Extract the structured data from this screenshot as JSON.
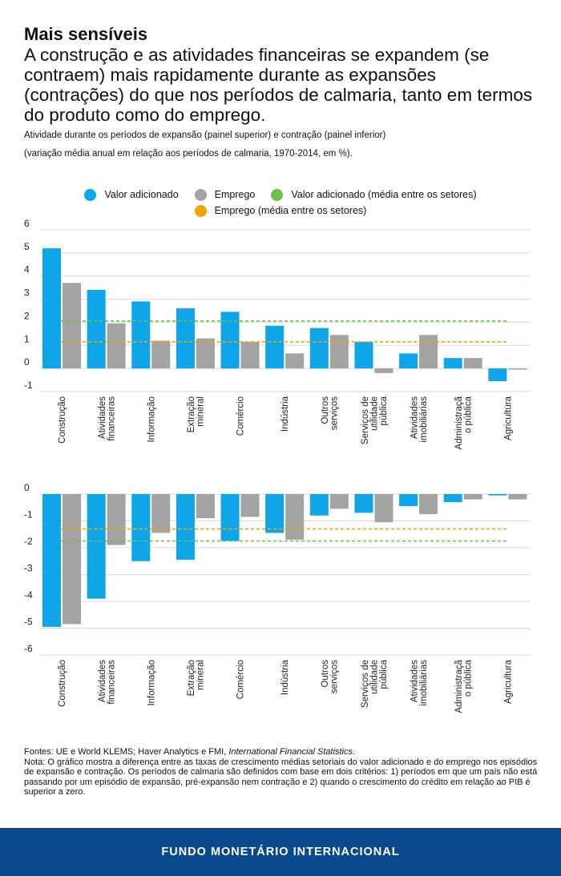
{
  "header": {
    "kicker": "Mais sensíveis",
    "headline": "A construção e as atividades financeiras se expandem (se contraem) mais rapidamente durante as expansões (contrações) do que nos períodos de calmaria, tanto em termos do produto como do emprego.",
    "subtitle": "Atividade durante os períodos de expansão (painel superior) e contração (painel inferior)",
    "subtitle2": "(variação média anual em relação aos períodos de calmaria, 1970-2014, em %)."
  },
  "legend": {
    "value_added": "Valor adicionado",
    "employment": "Emprego",
    "value_added_avg": "Valor adicionado (média entre os setores)",
    "employment_avg": "Emprego (média entre os setores)"
  },
  "colors": {
    "value_added": "#0ea5e9",
    "employment": "#a3a3a3",
    "value_added_avg": "#6cc04a",
    "employment_avg": "#f5a300",
    "band": "#0a4a8c"
  },
  "chart_data": [
    {
      "type": "bar",
      "title": "Expansão (painel superior)",
      "categories": [
        "Construção",
        "Atividades financeiras",
        "Informação",
        "Extração mineral",
        "Comércio",
        "Indústria",
        "Outros serviços",
        "Serviços de utilidade pública",
        "Atividades imobiliárias",
        "Administração pública",
        "Agricultura"
      ],
      "category_lines": [
        [
          "Construção"
        ],
        [
          "Atividades",
          "financeiras"
        ],
        [
          "Informação"
        ],
        [
          "Extração",
          "mineral"
        ],
        [
          "Comércio"
        ],
        [
          "Indústria"
        ],
        [
          "Outros",
          "serviços"
        ],
        [
          "Serviços de",
          "utilidade",
          "pública"
        ],
        [
          "Atividades",
          "imobiliárias"
        ],
        [
          "Administraçã",
          "o pública"
        ],
        [
          "Agricultura"
        ]
      ],
      "series": [
        {
          "name": "Valor adicionado",
          "values": [
            5.2,
            3.4,
            2.9,
            2.6,
            2.45,
            1.85,
            1.75,
            1.15,
            0.65,
            0.45,
            -0.55
          ]
        },
        {
          "name": "Emprego",
          "values": [
            3.7,
            1.95,
            1.2,
            1.3,
            1.15,
            0.65,
            1.45,
            -0.2,
            1.45,
            0.45,
            -0.05
          ]
        }
      ],
      "reference_lines": [
        {
          "name": "Valor adicionado (média entre os setores)",
          "value": 2.05
        },
        {
          "name": "Emprego (média entre os setores)",
          "value": 1.15
        }
      ],
      "yticks": [
        6,
        5,
        4,
        3,
        2,
        1,
        0,
        -1
      ],
      "ylim": [
        -1,
        6
      ]
    },
    {
      "type": "bar",
      "title": "Contração (painel inferior)",
      "categories": [
        "Construção",
        "Atividades financeiras",
        "Informação",
        "Extração mineral",
        "Comércio",
        "Indústria",
        "Outros serviços",
        "Serviços de utilidade pública",
        "Atividades imobiliárias",
        "Administração pública",
        "Agricultura"
      ],
      "category_lines": [
        [
          "Construção"
        ],
        [
          "Atividades",
          "financeiras"
        ],
        [
          "Informação"
        ],
        [
          "Extração",
          "mineral"
        ],
        [
          "Comércio"
        ],
        [
          "Indústria"
        ],
        [
          "Outros",
          "serviços"
        ],
        [
          "Serviços de",
          "utilidade",
          "pública"
        ],
        [
          "Atividades",
          "imobiliárias"
        ],
        [
          "Administraçã",
          "o pública"
        ],
        [
          "Agricultura"
        ]
      ],
      "series": [
        {
          "name": "Valor adicionado",
          "values": [
            -4.95,
            -3.9,
            -2.5,
            -2.45,
            -1.75,
            -1.45,
            -0.8,
            -0.7,
            -0.45,
            -0.3,
            -0.05
          ]
        },
        {
          "name": "Emprego",
          "values": [
            -4.85,
            -1.9,
            -1.45,
            -0.9,
            -0.85,
            -1.7,
            -0.55,
            -1.05,
            -0.75,
            -0.2,
            -0.2
          ]
        }
      ],
      "reference_lines": [
        {
          "name": "Valor adicionado (média entre os setores)",
          "value": -1.75
        },
        {
          "name": "Emprego (média entre os setores)",
          "value": -1.3
        }
      ],
      "yticks": [
        0,
        -1,
        -2,
        -3,
        -4,
        -5,
        -6
      ],
      "ylim": [
        -6,
        0
      ]
    }
  ],
  "footer": {
    "sources_prefix": "Fontes: UE e World KLEMS; Haver Analytics e FMI, ",
    "sources_italic": "International Financial Statistics",
    "sources_suffix": ".",
    "note": "Nota: O gráfico mostra a diferença entre as taxas de crescimento médias setoriais do valor adicionado e do emprego nos episódios de expansão e contração. Os períodos de calmaria são definidos com base em dois critérios: 1) períodos em que um país não está passando por um episódio de expansão, pré-expansão nem contração e 2) quando o crescimento do crédito em relação ao PIB é superior a zero.",
    "organization": "FUNDO MONETÁRIO INTERNACIONAL"
  }
}
